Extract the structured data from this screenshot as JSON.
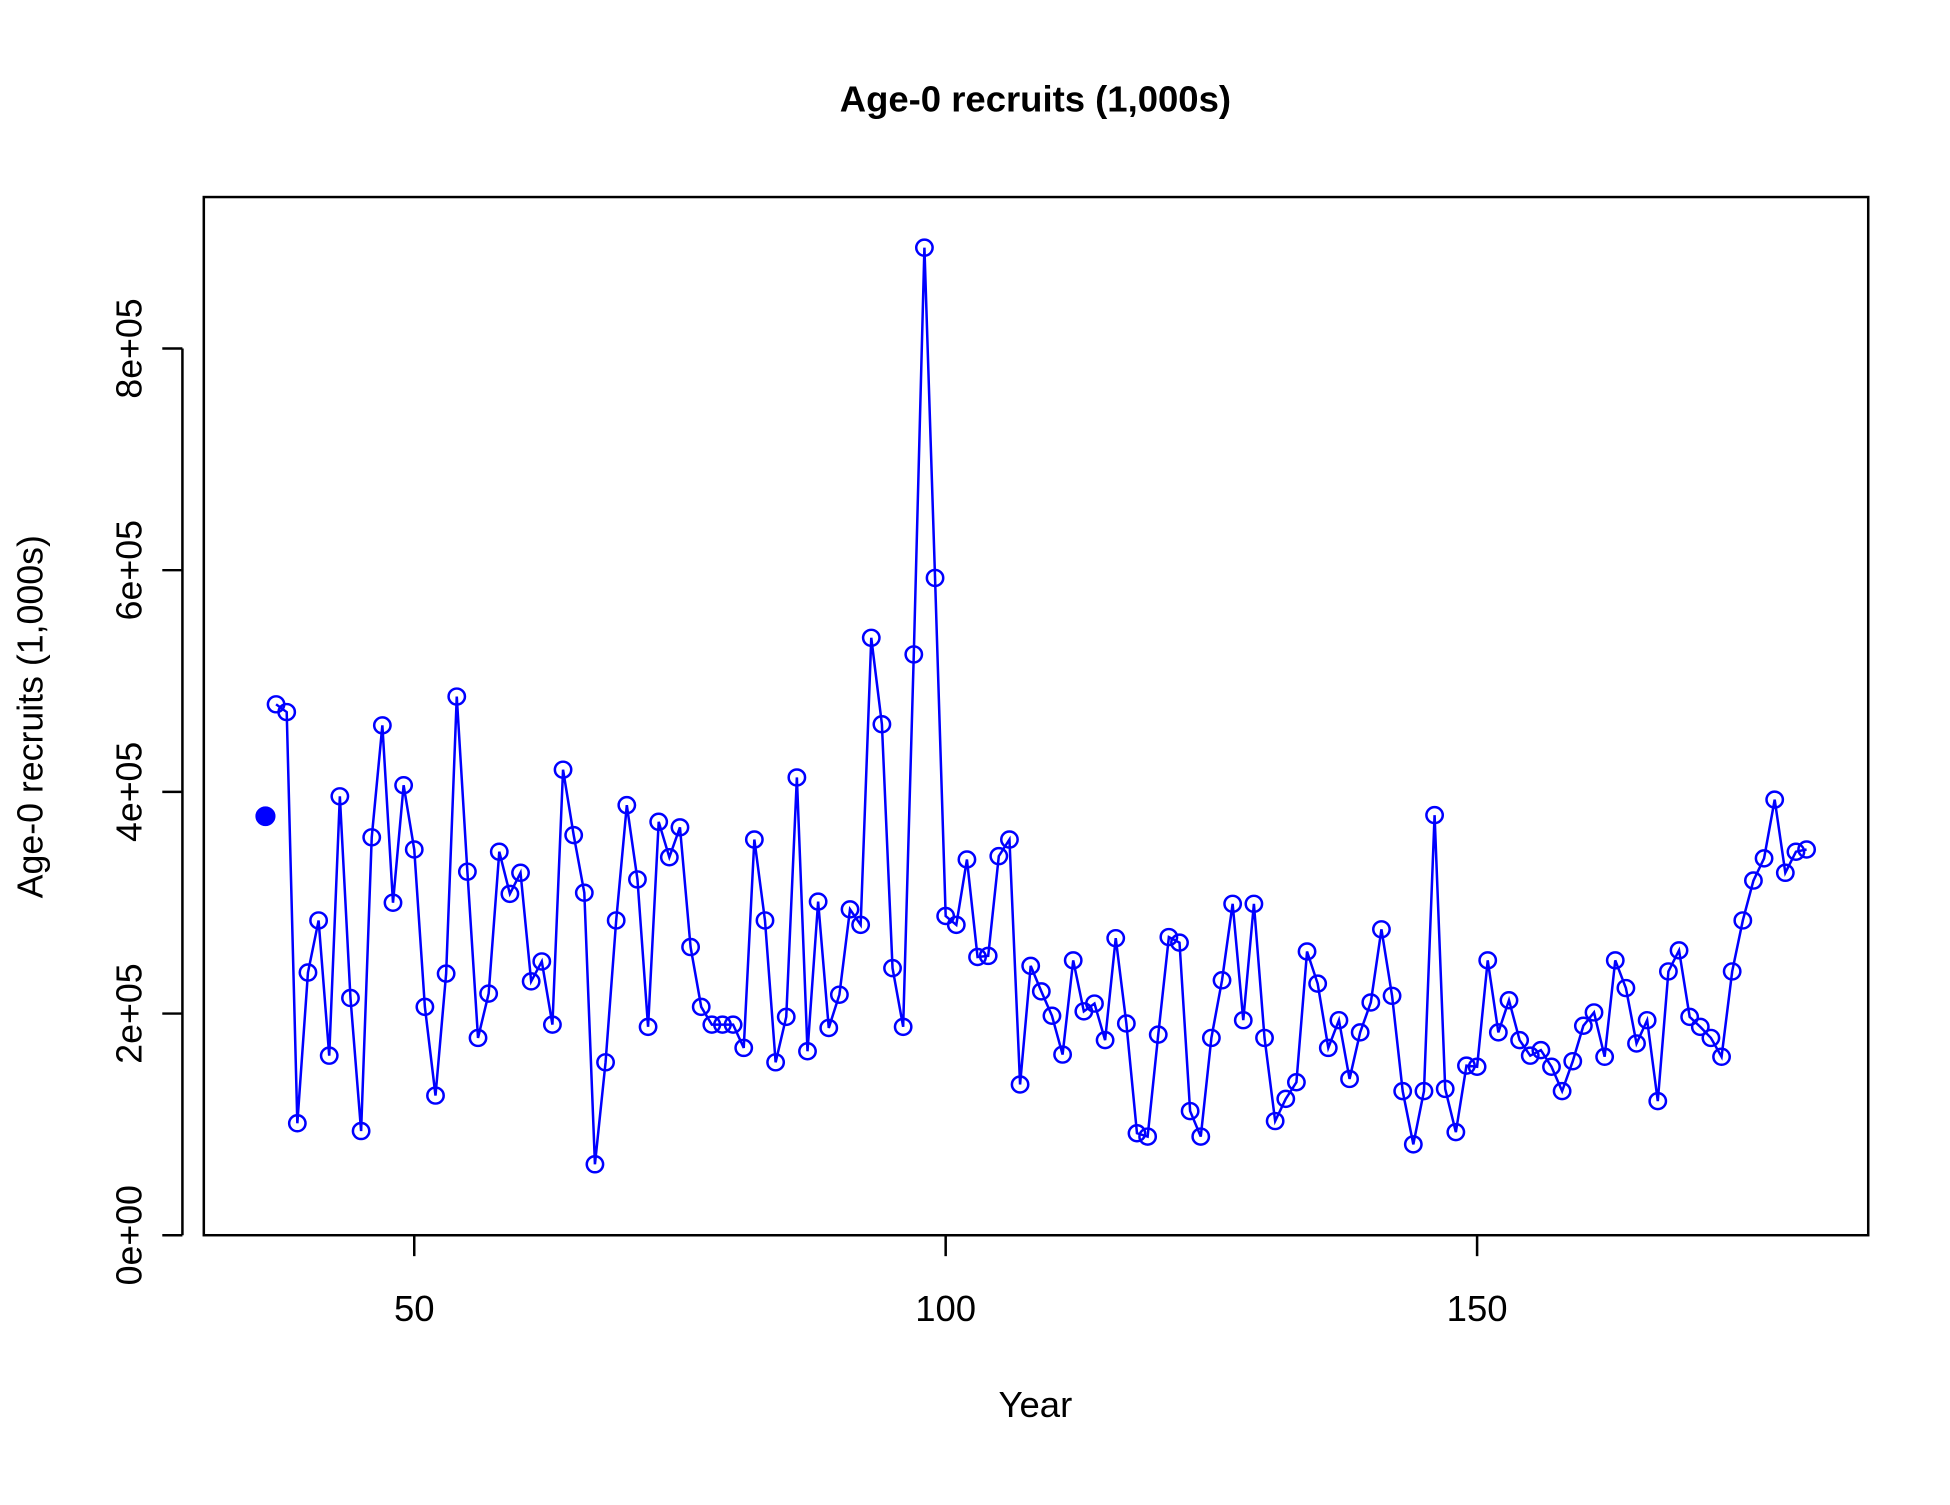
{
  "chart_data": {
    "type": "line",
    "title": "Age-0 recruits (1,000s)",
    "xlabel": "Year",
    "ylabel": "Age-0 recruits (1,000s)",
    "xlim": [
      30.2,
      186.8
    ],
    "xticks": [
      50,
      100,
      150
    ],
    "ylim": [
      0,
      936667
    ],
    "yticks": [
      {
        "value": 0,
        "label": "0e+00"
      },
      {
        "value": 200000,
        "label": "2e+05"
      },
      {
        "value": 400000,
        "label": "4e+05"
      },
      {
        "value": 600000,
        "label": "6e+05"
      },
      {
        "value": 800000,
        "label": "8e+05"
      }
    ],
    "series": [
      {
        "color": "#0000ff",
        "marker": "filled",
        "x": [
          36
        ],
        "values": [
          378000
        ]
      },
      {
        "color": "#0000ff",
        "marker": "open",
        "x": [
          37,
          38,
          39,
          40,
          41,
          42,
          43,
          44,
          45,
          46,
          47,
          48,
          49,
          50,
          51,
          52,
          53,
          54,
          55,
          56,
          57,
          58,
          59,
          60,
          61,
          62,
          63,
          64,
          65,
          66,
          67,
          68,
          69,
          70,
          71,
          72,
          73,
          74,
          75,
          76,
          77,
          78,
          79,
          80,
          81,
          82,
          83,
          84,
          85,
          86,
          87,
          88,
          89,
          90,
          91,
          92,
          93,
          94,
          95,
          96,
          97,
          98,
          99,
          100,
          101,
          102,
          103,
          104,
          105,
          106,
          107,
          108,
          109,
          110,
          111,
          112,
          113,
          114,
          115,
          116,
          117,
          118,
          119,
          120,
          121,
          122,
          123,
          124,
          125,
          126,
          127,
          128,
          129,
          130,
          131,
          132,
          133,
          134,
          135,
          136,
          137,
          138,
          139,
          140,
          141,
          142,
          143,
          144,
          145,
          146,
          147,
          148,
          149,
          150,
          151,
          152,
          153,
          154,
          155,
          156,
          157,
          158,
          159,
          160,
          161,
          162,
          163,
          164,
          165,
          166,
          167,
          168,
          169,
          170,
          171,
          172,
          173,
          174,
          175,
          176,
          177,
          178,
          179,
          180,
          181
        ],
        "values": [
          479000,
          472000,
          101000,
          237000,
          284000,
          162000,
          396000,
          214000,
          94000,
          359000,
          460000,
          300000,
          406000,
          348000,
          206000,
          126000,
          236000,
          486000,
          328000,
          178000,
          218000,
          346000,
          308000,
          327000,
          229000,
          247000,
          190000,
          420000,
          361000,
          309000,
          64000,
          156000,
          284000,
          388000,
          321000,
          188000,
          373000,
          341000,
          368000,
          260000,
          206000,
          190000,
          190000,
          190000,
          169000,
          357000,
          284000,
          156000,
          197000,
          413000,
          166000,
          301000,
          187000,
          217000,
          294000,
          280000,
          539000,
          461000,
          241000,
          188000,
          524000,
          891000,
          593000,
          288000,
          280000,
          339000,
          251000,
          252000,
          342000,
          357000,
          136000,
          243000,
          220000,
          198000,
          163000,
          248000,
          202000,
          209000,
          176000,
          268000,
          191000,
          92000,
          89000,
          181000,
          269000,
          264000,
          112000,
          89000,
          178000,
          230000,
          299000,
          194000,
          299000,
          178000,
          103000,
          123000,
          138000,
          256000,
          227000,
          169000,
          194000,
          141000,
          183000,
          210000,
          276000,
          216000,
          130000,
          82000,
          130000,
          379000,
          132000,
          93000,
          153000,
          152000,
          248000,
          183000,
          212000,
          176000,
          162000,
          167000,
          152000,
          130000,
          157000,
          189000,
          201000,
          161000,
          248000,
          223000,
          173000,
          194000,
          121000,
          238000,
          257000,
          197000,
          188000,
          178000,
          161000,
          238000,
          284000,
          320000,
          340000,
          393000,
          327000,
          346000,
          348000
        ]
      }
    ]
  }
}
